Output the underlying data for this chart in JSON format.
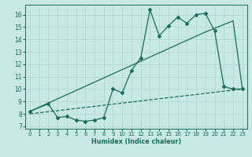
{
  "xlabel": "Humidex (Indice chaleur)",
  "xlim": [
    -0.5,
    23.5
  ],
  "ylim": [
    6.8,
    16.8
  ],
  "yticks": [
    7,
    8,
    9,
    10,
    11,
    12,
    13,
    14,
    15,
    16
  ],
  "xticks": [
    0,
    1,
    2,
    3,
    4,
    5,
    6,
    7,
    8,
    9,
    10,
    11,
    12,
    13,
    14,
    15,
    16,
    17,
    18,
    19,
    20,
    21,
    22,
    23
  ],
  "bg_color": "#c8e8e4",
  "line_color": "#1a6b5a",
  "grid_color": "#b0d4d0",
  "line1_x": [
    0,
    2,
    3,
    4,
    5,
    6,
    7,
    8,
    9,
    10,
    11,
    12,
    13,
    14,
    15,
    16,
    17,
    18,
    19,
    20,
    21,
    22,
    23
  ],
  "line1_y": [
    8.2,
    8.8,
    7.7,
    7.8,
    7.5,
    7.4,
    7.5,
    7.7,
    10.0,
    9.7,
    11.5,
    12.5,
    16.4,
    14.3,
    15.1,
    15.8,
    15.3,
    16.0,
    16.1,
    14.7,
    10.2,
    10.0,
    10.0
  ],
  "line2_x": [
    0,
    19,
    22,
    23
  ],
  "line2_y": [
    8.2,
    14.6,
    15.5,
    10.0
  ],
  "line3_x": [
    0,
    23
  ],
  "line3_y": [
    8.0,
    10.0
  ]
}
